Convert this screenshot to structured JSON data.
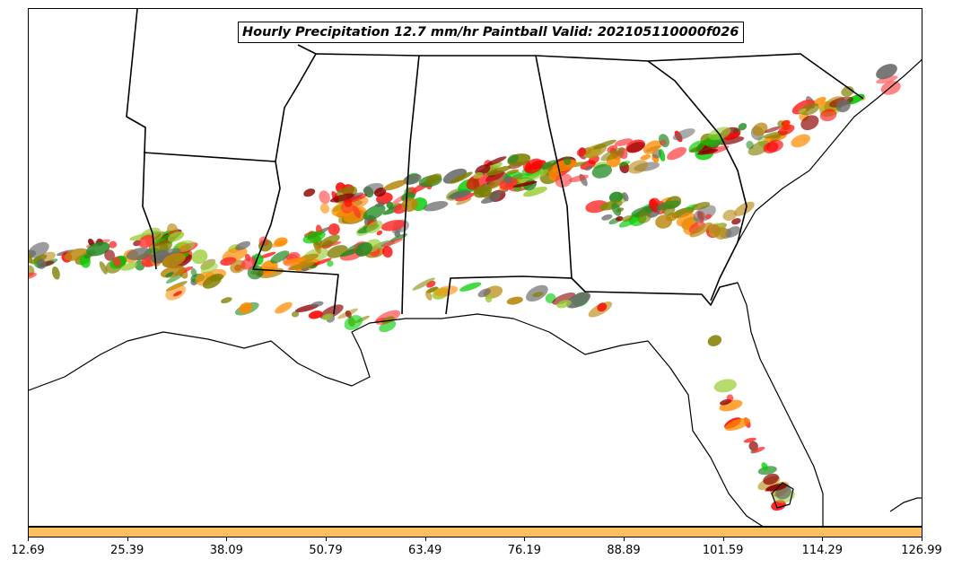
{
  "title": "Hourly Precipitation 12.7 mm/hr Paintball Valid: 202105110000f026",
  "colorbar": {
    "color": "#FDBF5F",
    "ticks": [
      "12.69",
      "25.39",
      "38.09",
      "50.79",
      "63.49",
      "76.19",
      "88.89",
      "101.59",
      "114.29",
      "126.99"
    ]
  },
  "member_colors": [
    "#FF0000",
    "#FF8C00",
    "#8B0000",
    "#00CD00",
    "#228B22",
    "#9ACD32",
    "#808000",
    "#696969",
    "#FF3030",
    "#B8860B"
  ]
}
